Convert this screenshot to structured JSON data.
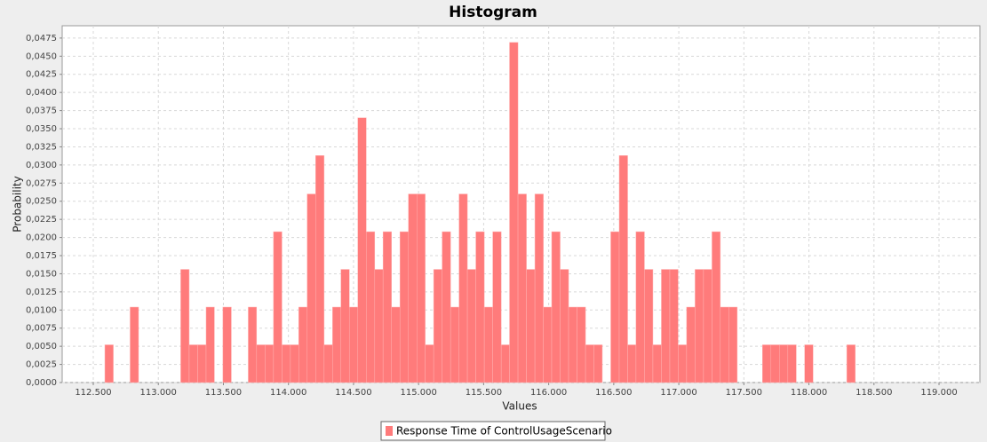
{
  "chart_data": {
    "type": "histogram",
    "title": "Histogram",
    "x_label": "Values",
    "y_label": "Probability",
    "bins": [
      112.589,
      112.654,
      112.719,
      112.783,
      112.848,
      112.913,
      112.978,
      113.043,
      113.107,
      113.172,
      113.237,
      113.302,
      113.367,
      113.431,
      113.496,
      113.561,
      113.626,
      113.691,
      113.755,
      113.82,
      113.885,
      113.95,
      114.015,
      114.079,
      114.144,
      114.209,
      114.274,
      114.339,
      114.403,
      114.468,
      114.533,
      114.598,
      114.663,
      114.727,
      114.792,
      114.857,
      114.922,
      114.987,
      115.051,
      115.116,
      115.181,
      115.246,
      115.311,
      115.375,
      115.44,
      115.505,
      115.57,
      115.635,
      115.699,
      115.764,
      115.829,
      115.894,
      115.959,
      116.023,
      116.088,
      116.153,
      116.218,
      116.283,
      116.347,
      116.412,
      116.477,
      116.542,
      116.607,
      116.671,
      116.736,
      116.801,
      116.866,
      116.931,
      116.995,
      117.06,
      117.125,
      117.19,
      117.255,
      117.319,
      117.384,
      117.449,
      117.514,
      117.579,
      117.643,
      117.708,
      117.773,
      117.838,
      117.903,
      117.967,
      118.032,
      118.097,
      118.162,
      118.227,
      118.291,
      118.356
    ],
    "series": [
      {
        "name": "Response Time of ControlUsageScenario",
        "color": "#ff7b7b",
        "values": [
          0.0052,
          0,
          0,
          0.0104,
          0,
          0,
          0,
          0,
          0,
          0.0156,
          0.0052,
          0.0052,
          0.0104,
          0,
          0.0104,
          0,
          0,
          0.0104,
          0.0052,
          0.0052,
          0.0208,
          0.0052,
          0.0052,
          0.0104,
          0.026,
          0.0313,
          0.0052,
          0.0104,
          0.0156,
          0.0104,
          0.0365,
          0.0208,
          0.0156,
          0.0208,
          0.0104,
          0.0208,
          0.026,
          0.026,
          0.0052,
          0.0156,
          0.0208,
          0.0104,
          0.026,
          0.0156,
          0.0208,
          0.0104,
          0.0208,
          0.0052,
          0.0469,
          0.026,
          0.0156,
          0.026,
          0.0104,
          0.0208,
          0.0156,
          0.0104,
          0.0104,
          0.0052,
          0.0052,
          0,
          0.0208,
          0.0313,
          0.0052,
          0.0208,
          0.0156,
          0.0052,
          0.0156,
          0.0156,
          0.0052,
          0.0104,
          0.0156,
          0.0156,
          0.0208,
          0.0104,
          0.0104,
          0,
          0,
          0,
          0.0052,
          0.0052,
          0.0052,
          0.0052,
          0,
          0.0052,
          0,
          0,
          0,
          0,
          0.0052
        ]
      }
    ],
    "xlim": [
      112.261,
      119.314
    ],
    "ylim": [
      0,
      0.0492
    ],
    "xticks": [
      {
        "value": 112.5,
        "label": "112.500"
      },
      {
        "value": 113,
        "label": "113.000"
      },
      {
        "value": 113.5,
        "label": "113.500"
      },
      {
        "value": 114,
        "label": "114.000"
      },
      {
        "value": 114.5,
        "label": "114.500"
      },
      {
        "value": 115,
        "label": "115.000"
      },
      {
        "value": 115.5,
        "label": "115.500"
      },
      {
        "value": 116,
        "label": "116.000"
      },
      {
        "value": 116.5,
        "label": "116.500"
      },
      {
        "value": 117,
        "label": "117.000"
      },
      {
        "value": 117.5,
        "label": "117.500"
      },
      {
        "value": 118,
        "label": "118.000"
      },
      {
        "value": 118.5,
        "label": "118.500"
      },
      {
        "value": 119,
        "label": "119.000"
      }
    ],
    "yticks": [
      {
        "value": 0,
        "label": "0,0000"
      },
      {
        "value": 0.0025,
        "label": "0,0025"
      },
      {
        "value": 0.005,
        "label": "0,0050"
      },
      {
        "value": 0.0075,
        "label": "0,0075"
      },
      {
        "value": 0.01,
        "label": "0,0100"
      },
      {
        "value": 0.0125,
        "label": "0,0125"
      },
      {
        "value": 0.015,
        "label": "0,0150"
      },
      {
        "value": 0.0175,
        "label": "0,0175"
      },
      {
        "value": 0.02,
        "label": "0,0200"
      },
      {
        "value": 0.0225,
        "label": "0,0225"
      },
      {
        "value": 0.025,
        "label": "0,0250"
      },
      {
        "value": 0.0275,
        "label": "0,0275"
      },
      {
        "value": 0.03,
        "label": "0,0300"
      },
      {
        "value": 0.0325,
        "label": "0,0325"
      },
      {
        "value": 0.035,
        "label": "0,0350"
      },
      {
        "value": 0.0375,
        "label": "0,0375"
      },
      {
        "value": 0.04,
        "label": "0,0400"
      },
      {
        "value": 0.0425,
        "label": "0,0425"
      },
      {
        "value": 0.045,
        "label": "0,0450"
      },
      {
        "value": 0.0475,
        "label": "0,0475"
      }
    ],
    "grid": true,
    "legend": "bottom"
  }
}
